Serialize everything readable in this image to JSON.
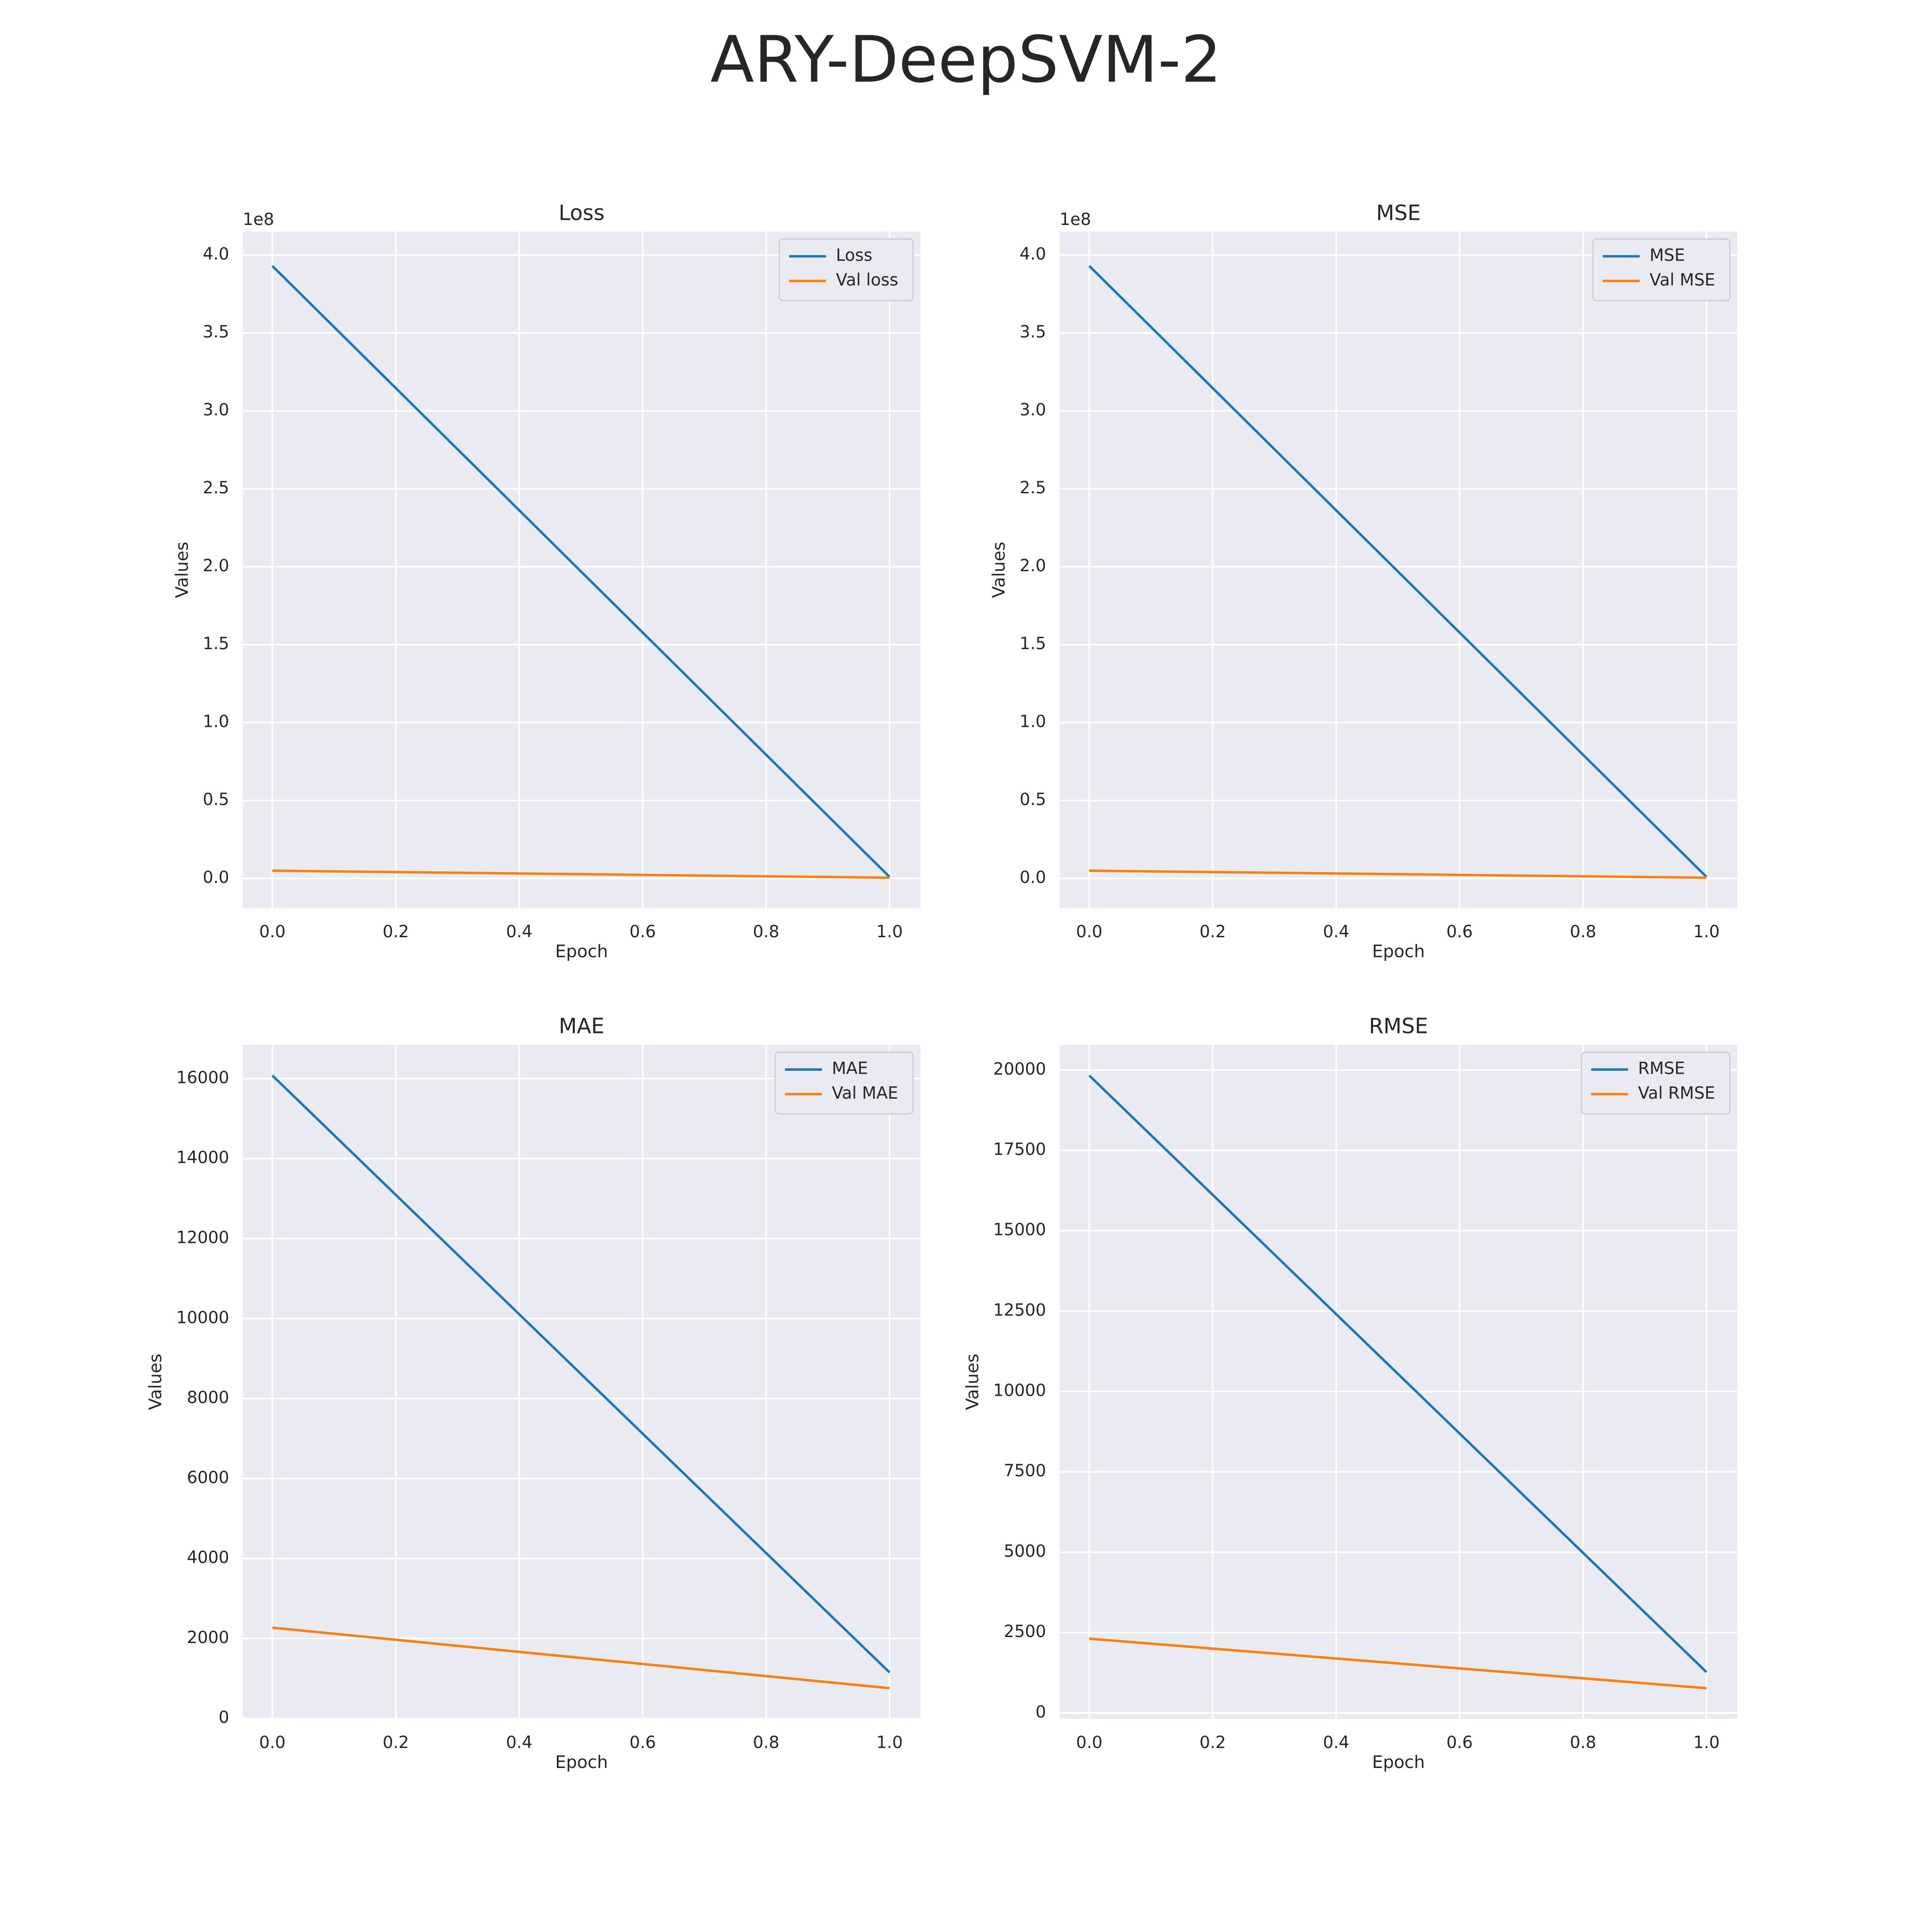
{
  "title": "ARY-DeepSVM-2",
  "chart_data": [
    {
      "type": "line",
      "title": "Loss",
      "x_label": "Epoch",
      "y_label": "Values",
      "y_offset_label": "1e8",
      "x": [
        0,
        1
      ],
      "series": [
        {
          "name": "Loss",
          "color": "#1f77b4",
          "values": [
            3.93,
            0.01
          ]
        },
        {
          "name": "Val loss",
          "color": "#ff7f0e",
          "values": [
            0.05,
            0.005
          ]
        }
      ],
      "xlim": [
        -0.048,
        1.05
      ],
      "ylim": [
        -0.19,
        4.15
      ],
      "xticks": [
        {
          "value": 0,
          "label": "0.0"
        },
        {
          "value": 0.2,
          "label": "0.2"
        },
        {
          "value": 0.4,
          "label": "0.4"
        },
        {
          "value": 0.6,
          "label": "0.6"
        },
        {
          "value": 0.8,
          "label": "0.8"
        },
        {
          "value": 1,
          "label": "1.0"
        }
      ],
      "yticks": [
        {
          "value": 0,
          "label": "0.0"
        },
        0.5,
        {
          "value": 1,
          "label": "1.0"
        },
        1.5,
        {
          "value": 2,
          "label": "2.0"
        },
        2.5,
        {
          "value": 3,
          "label": "3.0"
        },
        3.5,
        {
          "value": 4,
          "label": "4.0"
        }
      ],
      "grid": true,
      "legend": "upper right"
    },
    {
      "type": "line",
      "title": "MSE",
      "x_label": "Epoch",
      "y_label": "Values",
      "y_offset_label": "1e8",
      "x": [
        0,
        1
      ],
      "series": [
        {
          "name": "MSE",
          "color": "#1f77b4",
          "values": [
            3.93,
            0.01
          ]
        },
        {
          "name": "Val MSE",
          "color": "#ff7f0e",
          "values": [
            0.05,
            0.005
          ]
        }
      ],
      "xlim": [
        -0.048,
        1.05
      ],
      "ylim": [
        -0.19,
        4.15
      ],
      "xticks": [
        {
          "value": 0,
          "label": "0.0"
        },
        {
          "value": 0.2,
          "label": "0.2"
        },
        {
          "value": 0.4,
          "label": "0.4"
        },
        {
          "value": 0.6,
          "label": "0.6"
        },
        {
          "value": 0.8,
          "label": "0.8"
        },
        {
          "value": 1,
          "label": "1.0"
        }
      ],
      "yticks": [
        {
          "value": 0,
          "label": "0.0"
        },
        0.5,
        {
          "value": 1,
          "label": "1.0"
        },
        1.5,
        {
          "value": 2,
          "label": "2.0"
        },
        2.5,
        {
          "value": 3,
          "label": "3.0"
        },
        3.5,
        {
          "value": 4,
          "label": "4.0"
        }
      ],
      "grid": true,
      "legend": "upper right"
    },
    {
      "type": "line",
      "title": "MAE",
      "x_label": "Epoch",
      "y_label": "Values",
      "x": [
        0,
        1
      ],
      "series": [
        {
          "name": "MAE",
          "color": "#1f77b4",
          "values": [
            16080,
            1150
          ]
        },
        {
          "name": "Val MAE",
          "color": "#ff7f0e",
          "values": [
            2270,
            756
          ]
        }
      ],
      "xlim": [
        -0.048,
        1.05
      ],
      "ylim": [
        -10,
        16846
      ],
      "xticks": [
        {
          "value": 0,
          "label": "0.0"
        },
        {
          "value": 0.2,
          "label": "0.2"
        },
        {
          "value": 0.4,
          "label": "0.4"
        },
        {
          "value": 0.6,
          "label": "0.6"
        },
        {
          "value": 0.8,
          "label": "0.8"
        },
        {
          "value": 1,
          "label": "1.0"
        }
      ],
      "yticks": [
        0,
        2000,
        4000,
        6000,
        8000,
        10000,
        12000,
        14000,
        16000
      ],
      "grid": true,
      "legend": "upper right"
    },
    {
      "type": "line",
      "title": "RMSE",
      "x_label": "Epoch",
      "y_label": "Values",
      "x": [
        0,
        1
      ],
      "series": [
        {
          "name": "RMSE",
          "color": "#1f77b4",
          "values": [
            19830,
            1270
          ]
        },
        {
          "name": "Val RMSE",
          "color": "#ff7f0e",
          "values": [
            2310,
            770
          ]
        }
      ],
      "xlim": [
        -0.048,
        1.05
      ],
      "ylim": [
        -183,
        20783
      ],
      "xticks": [
        {
          "value": 0,
          "label": "0.0"
        },
        {
          "value": 0.2,
          "label": "0.2"
        },
        {
          "value": 0.4,
          "label": "0.4"
        },
        {
          "value": 0.6,
          "label": "0.6"
        },
        {
          "value": 0.8,
          "label": "0.8"
        },
        {
          "value": 1,
          "label": "1.0"
        }
      ],
      "yticks": [
        0,
        2500,
        5000,
        7500,
        10000,
        12500,
        15000,
        17500,
        20000
      ],
      "grid": true,
      "legend": "upper right"
    }
  ]
}
